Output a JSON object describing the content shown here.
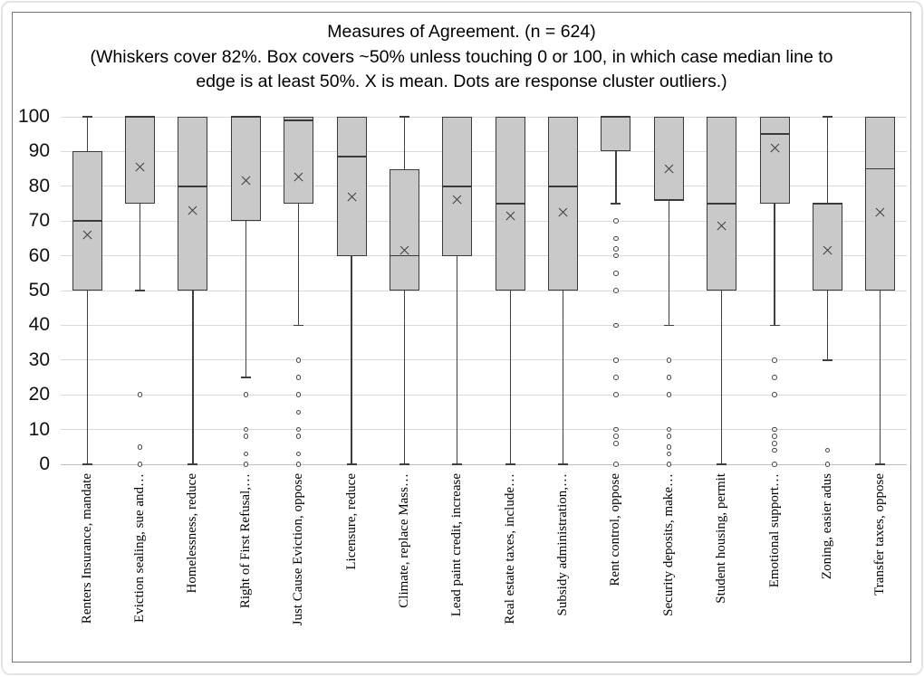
{
  "chart_data": {
    "type": "boxplot",
    "title": "Measures of Agreement. (n = 624)",
    "subtitle": [
      "(Whiskers cover 82%. Box covers ~50% unless touching 0 or 100, in which case median line to",
      "edge is at least 50%. X is mean. Dots are response cluster outliers.)"
    ],
    "ylim": [
      0,
      100
    ],
    "yticks": [
      100,
      90,
      80,
      70,
      60,
      50,
      40,
      30,
      20,
      10,
      0
    ],
    "grid": true,
    "legend_position": "none",
    "mean_marker": "x",
    "outlier_marker": "open-circle",
    "categories": [
      "Renters Insurance, mandate",
      "Eviction sealing, sue and…",
      "Homelessness, reduce",
      "Right of First Refusal,…",
      "Just Cause Eviction, oppose",
      "Licensure, reduce",
      "Climate, replace Mass…",
      "Lead paint credit, increase",
      "Real estate taxes, include…",
      "Subsidy administration,…",
      "Rent control, oppose",
      "Security deposits, make…",
      "Student housing, permit",
      "Emotional support…",
      "Zoning, easier adus",
      "Transfer taxes, oppose"
    ],
    "boxes": [
      {
        "whisker_low": 0,
        "box_low": 50,
        "median": 70,
        "box_high": 90,
        "whisker_high": 100,
        "mean": 66,
        "outliers": []
      },
      {
        "whisker_low": 50,
        "box_low": 75,
        "median": 100,
        "box_high": 100,
        "whisker_high": 100,
        "mean": 85.5,
        "outliers": [
          20,
          5,
          0
        ]
      },
      {
        "whisker_low": 0,
        "box_low": 50,
        "median": 80,
        "box_high": 100,
        "whisker_high": 100,
        "mean": 73,
        "outliers": []
      },
      {
        "whisker_low": 25,
        "box_low": 70,
        "median": 100,
        "box_high": 100,
        "whisker_high": 100,
        "mean": 81.5,
        "outliers": [
          20,
          10,
          8,
          3,
          0
        ]
      },
      {
        "whisker_low": 40,
        "box_low": 75,
        "median": 99,
        "box_high": 100,
        "whisker_high": 100,
        "mean": 82.5,
        "outliers": [
          30,
          25,
          20,
          15,
          10,
          8,
          3,
          0
        ]
      },
      {
        "whisker_low": 0,
        "box_low": 60,
        "median": 88.5,
        "box_high": 100,
        "whisker_high": 100,
        "mean": 77,
        "outliers": []
      },
      {
        "whisker_low": 0,
        "box_low": 50,
        "median": 60,
        "box_high": 85,
        "whisker_high": 100,
        "mean": 61.5,
        "outliers": []
      },
      {
        "whisker_low": 0,
        "box_low": 60,
        "median": 80,
        "box_high": 100,
        "whisker_high": 100,
        "mean": 76,
        "outliers": []
      },
      {
        "whisker_low": 0,
        "box_low": 50,
        "median": 75,
        "box_high": 100,
        "whisker_high": 100,
        "mean": 71.5,
        "outliers": []
      },
      {
        "whisker_low": 0,
        "box_low": 50,
        "median": 80,
        "box_high": 100,
        "whisker_high": 100,
        "mean": 72.5,
        "outliers": []
      },
      {
        "whisker_low": 75,
        "box_low": 90,
        "median": 100,
        "box_high": 100,
        "whisker_high": 100,
        "mean": null,
        "outliers": [
          70,
          65,
          62,
          60,
          55,
          50,
          40,
          30,
          25,
          20,
          10,
          8,
          6,
          0
        ]
      },
      {
        "whisker_low": 40,
        "box_low": 76,
        "median": 76,
        "box_high": 100,
        "whisker_high": 100,
        "mean": 85,
        "outliers": [
          30,
          25,
          20,
          10,
          8,
          5,
          3,
          0
        ]
      },
      {
        "whisker_low": 0,
        "box_low": 50,
        "median": 75,
        "box_high": 100,
        "whisker_high": 100,
        "mean": 68.5,
        "outliers": []
      },
      {
        "whisker_low": 40,
        "box_low": 75,
        "median": 95,
        "box_high": 100,
        "whisker_high": 100,
        "mean": 91,
        "outliers": [
          30,
          25,
          20,
          10,
          8,
          6,
          4,
          0
        ]
      },
      {
        "whisker_low": 30,
        "box_low": 50,
        "median": 75,
        "box_high": 75,
        "whisker_high": 100,
        "mean": 61.5,
        "outliers": [
          4,
          0
        ]
      },
      {
        "whisker_low": 0,
        "box_low": 50,
        "median": 85,
        "box_high": 100,
        "whisker_high": 100,
        "mean": 72.5,
        "outliers": []
      }
    ]
  },
  "colors": {
    "box_fill": "#c9c9c9",
    "box_border": "#3a3a3a",
    "gridline": "#d9d9d9",
    "zero_line": "#bfbfbf",
    "text": "#000000",
    "frame_border": "#767676"
  }
}
